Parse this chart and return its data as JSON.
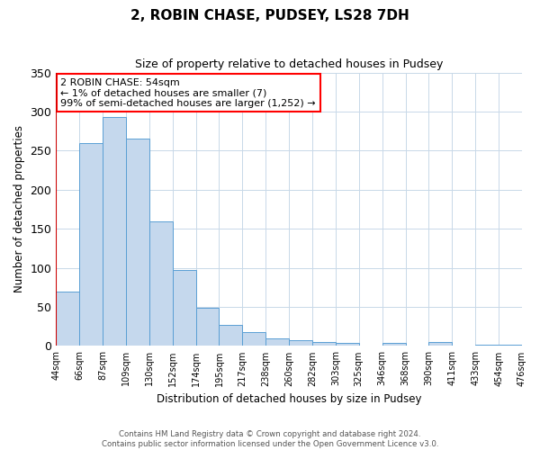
{
  "title": "2, ROBIN CHASE, PUDSEY, LS28 7DH",
  "subtitle": "Size of property relative to detached houses in Pudsey",
  "xlabel": "Distribution of detached houses by size in Pudsey",
  "ylabel": "Number of detached properties",
  "categories": [
    "44sqm",
    "66sqm",
    "87sqm",
    "109sqm",
    "130sqm",
    "152sqm",
    "174sqm",
    "195sqm",
    "217sqm",
    "238sqm",
    "260sqm",
    "282sqm",
    "303sqm",
    "325sqm",
    "346sqm",
    "368sqm",
    "390sqm",
    "411sqm",
    "433sqm",
    "454sqm",
    "476sqm"
  ],
  "values": [
    70,
    260,
    293,
    265,
    160,
    97,
    49,
    27,
    18,
    10,
    7,
    5,
    4,
    0,
    4,
    0,
    5,
    0,
    2,
    2
  ],
  "bar_color": "#c5d8ed",
  "bar_edge_color": "#5a9fd4",
  "marker_color": "#cc0000",
  "ylim": [
    0,
    350
  ],
  "yticks": [
    0,
    50,
    100,
    150,
    200,
    250,
    300,
    350
  ],
  "annotation_title": "2 ROBIN CHASE: 54sqm",
  "annotation_line1": "← 1% of detached houses are smaller (7)",
  "annotation_line2": "99% of semi-detached houses are larger (1,252) →",
  "footer1": "Contains HM Land Registry data © Crown copyright and database right 2024.",
  "footer2": "Contains public sector information licensed under the Open Government Licence v3.0."
}
